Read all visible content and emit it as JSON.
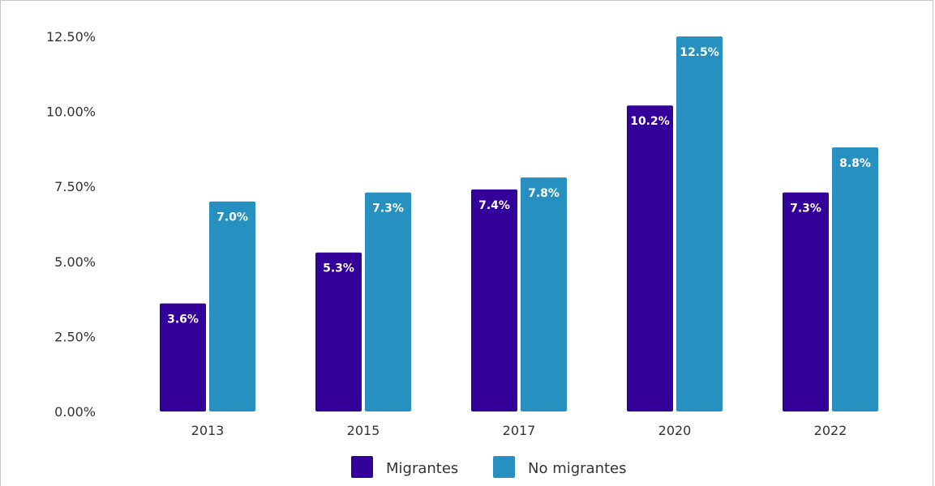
{
  "chart_data": {
    "type": "bar",
    "categories": [
      "2013",
      "2015",
      "2017",
      "2020",
      "2022"
    ],
    "series": [
      {
        "name": "Migrantes",
        "values": [
          3.6,
          5.3,
          7.4,
          10.2,
          7.3
        ],
        "color": "#330099",
        "labels": [
          "3.6%",
          "5.3%",
          "7.4%",
          "10.2%",
          "7.3%"
        ]
      },
      {
        "name": "No migrantes",
        "values": [
          7.0,
          7.3,
          7.8,
          12.5,
          8.8
        ],
        "color": "#2691c0",
        "labels": [
          "7.0%",
          "7.3%",
          "7.8%",
          "12.5%",
          "8.8%"
        ]
      }
    ],
    "ylim": [
      0,
      12.5
    ],
    "yticks": [
      0,
      2.5,
      5,
      7.5,
      10,
      12.5
    ],
    "ytick_labels": [
      "0.00%",
      "2.50%",
      "5.00%",
      "7.50%",
      "10.00%",
      "12.50%"
    ],
    "grid": false,
    "legend": "bottom-center"
  }
}
